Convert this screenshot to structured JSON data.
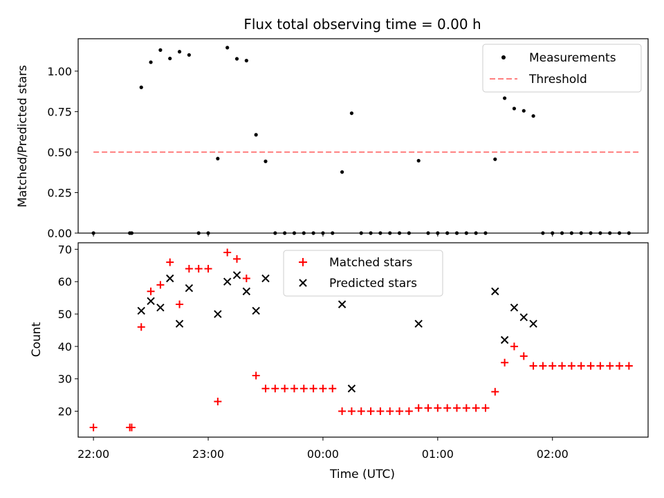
{
  "chart_data": [
    {
      "type": "scatter",
      "title": "Flux total observing time = 0.00 h",
      "ylabel": "Matched/Predicted stars",
      "xlim": [
        "21:52",
        "02:50"
      ],
      "ylim": [
        0,
        1.2
      ],
      "yticks": [
        "0.00",
        "0.25",
        "0.50",
        "0.75",
        "1.00"
      ],
      "grid": false,
      "legend_position": "top-right",
      "series": [
        {
          "name": "Measurements",
          "marker": "dot",
          "color": "#000000",
          "points": [
            {
              "x": "22:00",
              "y": 0.0
            },
            {
              "x": "22:19",
              "y": 0.0
            },
            {
              "x": "22:20",
              "y": 0.0
            },
            {
              "x": "22:25",
              "y": 0.9
            },
            {
              "x": "22:30",
              "y": 1.055
            },
            {
              "x": "22:35",
              "y": 1.13
            },
            {
              "x": "22:40",
              "y": 1.078
            },
            {
              "x": "22:45",
              "y": 1.12
            },
            {
              "x": "22:50",
              "y": 1.1
            },
            {
              "x": "22:55",
              "y": 0.0
            },
            {
              "x": "23:00",
              "y": 0.0
            },
            {
              "x": "23:05",
              "y": 0.46
            },
            {
              "x": "23:10",
              "y": 1.145
            },
            {
              "x": "23:15",
              "y": 1.076
            },
            {
              "x": "23:20",
              "y": 1.065
            },
            {
              "x": "23:25",
              "y": 0.607
            },
            {
              "x": "23:30",
              "y": 0.443
            },
            {
              "x": "23:35",
              "y": 0.0
            },
            {
              "x": "23:40",
              "y": 0.0
            },
            {
              "x": "23:45",
              "y": 0.0
            },
            {
              "x": "23:50",
              "y": 0.0
            },
            {
              "x": "23:55",
              "y": 0.0
            },
            {
              "x": "00:00",
              "y": 0.0
            },
            {
              "x": "00:05",
              "y": 0.0
            },
            {
              "x": "00:10",
              "y": 0.377
            },
            {
              "x": "00:15",
              "y": 0.74
            },
            {
              "x": "00:20",
              "y": 0.0
            },
            {
              "x": "00:25",
              "y": 0.0
            },
            {
              "x": "00:30",
              "y": 0.0
            },
            {
              "x": "00:35",
              "y": 0.0
            },
            {
              "x": "00:40",
              "y": 0.0
            },
            {
              "x": "00:45",
              "y": 0.0
            },
            {
              "x": "00:50",
              "y": 0.447
            },
            {
              "x": "00:55",
              "y": 0.0
            },
            {
              "x": "01:00",
              "y": 0.0
            },
            {
              "x": "01:05",
              "y": 0.0
            },
            {
              "x": "01:10",
              "y": 0.0
            },
            {
              "x": "01:15",
              "y": 0.0
            },
            {
              "x": "01:20",
              "y": 0.0
            },
            {
              "x": "01:25",
              "y": 0.0
            },
            {
              "x": "01:30",
              "y": 0.456
            },
            {
              "x": "01:35",
              "y": 0.833
            },
            {
              "x": "01:40",
              "y": 0.769
            },
            {
              "x": "01:45",
              "y": 0.755
            },
            {
              "x": "01:50",
              "y": 0.723
            },
            {
              "x": "01:55",
              "y": 0.0
            },
            {
              "x": "02:00",
              "y": 0.0
            },
            {
              "x": "02:05",
              "y": 0.0
            },
            {
              "x": "02:10",
              "y": 0.0
            },
            {
              "x": "02:15",
              "y": 0.0
            },
            {
              "x": "02:20",
              "y": 0.0
            },
            {
              "x": "02:25",
              "y": 0.0
            },
            {
              "x": "02:30",
              "y": 0.0
            },
            {
              "x": "02:35",
              "y": 0.0
            },
            {
              "x": "02:40",
              "y": 0.0
            }
          ]
        },
        {
          "name": "Threshold",
          "marker": "dashed-line",
          "color": "#ff7f7f",
          "points": [
            {
              "x": "22:00",
              "y": 0.5
            },
            {
              "x": "02:45",
              "y": 0.5
            }
          ]
        }
      ]
    },
    {
      "type": "scatter",
      "xlabel": "Time (UTC)",
      "ylabel": "Count",
      "xlim": [
        "21:52",
        "02:50"
      ],
      "ylim": [
        12,
        72
      ],
      "xticks": [
        "22:00",
        "23:00",
        "00:00",
        "01:00",
        "02:00"
      ],
      "yticks": [
        "20",
        "30",
        "40",
        "50",
        "60",
        "70"
      ],
      "grid": false,
      "legend_position": "top-center",
      "series": [
        {
          "name": "Matched stars",
          "marker": "plus",
          "color": "#ff0000",
          "points": [
            {
              "x": "22:00",
              "y": 15
            },
            {
              "x": "22:19",
              "y": 15
            },
            {
              "x": "22:20",
              "y": 15
            },
            {
              "x": "22:25",
              "y": 46
            },
            {
              "x": "22:30",
              "y": 57
            },
            {
              "x": "22:35",
              "y": 59
            },
            {
              "x": "22:40",
              "y": 66
            },
            {
              "x": "22:45",
              "y": 53
            },
            {
              "x": "22:50",
              "y": 64
            },
            {
              "x": "22:55",
              "y": 64
            },
            {
              "x": "23:00",
              "y": 64
            },
            {
              "x": "23:05",
              "y": 23
            },
            {
              "x": "23:10",
              "y": 69
            },
            {
              "x": "23:15",
              "y": 67
            },
            {
              "x": "23:20",
              "y": 61
            },
            {
              "x": "23:25",
              "y": 31
            },
            {
              "x": "23:30",
              "y": 27
            },
            {
              "x": "23:35",
              "y": 27
            },
            {
              "x": "23:40",
              "y": 27
            },
            {
              "x": "23:45",
              "y": 27
            },
            {
              "x": "23:50",
              "y": 27
            },
            {
              "x": "23:55",
              "y": 27
            },
            {
              "x": "00:00",
              "y": 27
            },
            {
              "x": "00:05",
              "y": 27
            },
            {
              "x": "00:10",
              "y": 20
            },
            {
              "x": "00:15",
              "y": 20
            },
            {
              "x": "00:20",
              "y": 20
            },
            {
              "x": "00:25",
              "y": 20
            },
            {
              "x": "00:30",
              "y": 20
            },
            {
              "x": "00:35",
              "y": 20
            },
            {
              "x": "00:40",
              "y": 20
            },
            {
              "x": "00:45",
              "y": 20
            },
            {
              "x": "00:50",
              "y": 21
            },
            {
              "x": "00:55",
              "y": 21
            },
            {
              "x": "01:00",
              "y": 21
            },
            {
              "x": "01:05",
              "y": 21
            },
            {
              "x": "01:10",
              "y": 21
            },
            {
              "x": "01:15",
              "y": 21
            },
            {
              "x": "01:20",
              "y": 21
            },
            {
              "x": "01:25",
              "y": 21
            },
            {
              "x": "01:30",
              "y": 26
            },
            {
              "x": "01:35",
              "y": 35
            },
            {
              "x": "01:40",
              "y": 40
            },
            {
              "x": "01:45",
              "y": 37
            },
            {
              "x": "01:50",
              "y": 34
            },
            {
              "x": "01:55",
              "y": 34
            },
            {
              "x": "02:00",
              "y": 34
            },
            {
              "x": "02:05",
              "y": 34
            },
            {
              "x": "02:10",
              "y": 34
            },
            {
              "x": "02:15",
              "y": 34
            },
            {
              "x": "02:20",
              "y": 34
            },
            {
              "x": "02:25",
              "y": 34
            },
            {
              "x": "02:30",
              "y": 34
            },
            {
              "x": "02:35",
              "y": 34
            },
            {
              "x": "02:40",
              "y": 34
            }
          ]
        },
        {
          "name": "Predicted stars",
          "marker": "x",
          "color": "#000000",
          "points": [
            {
              "x": "22:25",
              "y": 51
            },
            {
              "x": "22:30",
              "y": 54
            },
            {
              "x": "22:35",
              "y": 52
            },
            {
              "x": "22:40",
              "y": 61
            },
            {
              "x": "22:45",
              "y": 47
            },
            {
              "x": "22:50",
              "y": 58
            },
            {
              "x": "23:05",
              "y": 50
            },
            {
              "x": "23:10",
              "y": 60
            },
            {
              "x": "23:15",
              "y": 62
            },
            {
              "x": "23:20",
              "y": 57
            },
            {
              "x": "23:25",
              "y": 51
            },
            {
              "x": "23:30",
              "y": 61
            },
            {
              "x": "00:10",
              "y": 53
            },
            {
              "x": "00:15",
              "y": 27
            },
            {
              "x": "00:50",
              "y": 47
            },
            {
              "x": "01:30",
              "y": 57
            },
            {
              "x": "01:35",
              "y": 42
            },
            {
              "x": "01:40",
              "y": 52
            },
            {
              "x": "01:45",
              "y": 49
            },
            {
              "x": "01:50",
              "y": 47
            }
          ]
        }
      ]
    }
  ]
}
